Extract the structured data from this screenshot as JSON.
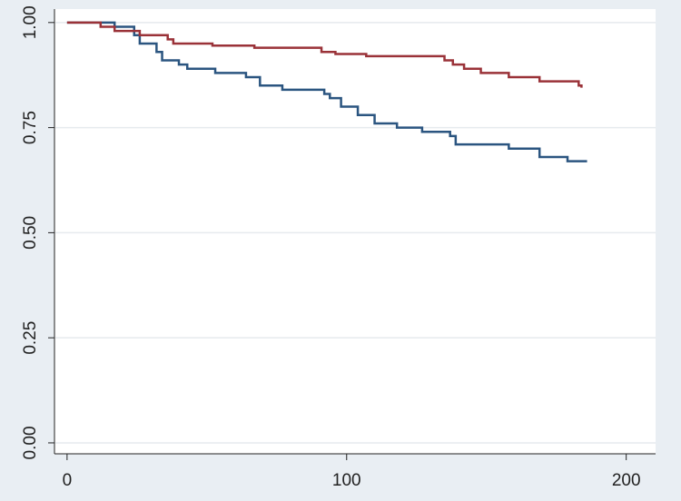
{
  "chart_data": {
    "type": "line",
    "xlim": [
      -4.5,
      210.5
    ],
    "ylim": [
      -0.026,
      1.032
    ],
    "xticks": [
      0,
      100,
      200
    ],
    "yticks": [
      {
        "value": 0,
        "label": "0.00"
      },
      0.25,
      {
        "value": 0.5,
        "label": "0.50"
      },
      0.75,
      {
        "value": 1,
        "label": "1.00"
      }
    ],
    "grid": true,
    "series": [
      {
        "color": "#2b5580",
        "x": [
          0,
          17,
          17,
          24,
          24,
          26,
          26,
          32,
          32,
          34,
          34,
          40,
          40,
          43,
          43,
          53,
          53,
          64,
          64,
          69,
          69,
          77,
          77,
          92,
          92,
          94,
          94,
          98,
          98,
          104,
          104,
          110,
          110,
          118,
          118,
          127,
          127,
          137,
          137,
          139,
          139,
          158,
          158,
          169,
          169,
          179,
          179,
          186
        ],
        "values": [
          1,
          1,
          0.99,
          0.99,
          0.97,
          0.97,
          0.95,
          0.95,
          0.93,
          0.93,
          0.91,
          0.91,
          0.9,
          0.9,
          0.89,
          0.89,
          0.88,
          0.88,
          0.87,
          0.87,
          0.85,
          0.85,
          0.84,
          0.84,
          0.83,
          0.83,
          0.82,
          0.82,
          0.8,
          0.8,
          0.78,
          0.78,
          0.76,
          0.76,
          0.75,
          0.75,
          0.74,
          0.74,
          0.73,
          0.73,
          0.71,
          0.71,
          0.7,
          0.7,
          0.68,
          0.68,
          0.67,
          0.67
        ]
      },
      {
        "color": "#9a3238",
        "x": [
          0,
          12,
          12,
          17,
          17,
          26,
          26,
          36,
          36,
          38,
          38,
          52,
          52,
          67,
          67,
          91,
          91,
          96,
          96,
          107,
          107,
          135,
          135,
          138,
          138,
          142,
          142,
          148,
          148,
          158,
          158,
          169,
          169,
          183,
          183,
          184,
          184
        ],
        "values": [
          1,
          1,
          0.99,
          0.99,
          0.98,
          0.98,
          0.97,
          0.97,
          0.96,
          0.96,
          0.95,
          0.95,
          0.945,
          0.945,
          0.94,
          0.94,
          0.93,
          0.93,
          0.925,
          0.925,
          0.92,
          0.92,
          0.91,
          0.91,
          0.9,
          0.9,
          0.89,
          0.89,
          0.88,
          0.88,
          0.87,
          0.87,
          0.86,
          0.86,
          0.85,
          0.85,
          0.845
        ]
      }
    ]
  }
}
